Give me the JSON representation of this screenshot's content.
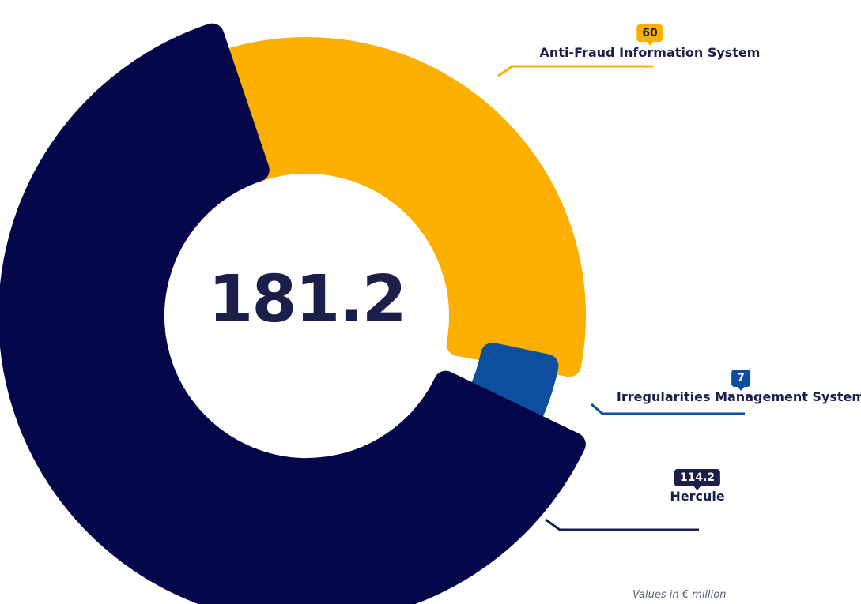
{
  "chart_data": {
    "type": "pie",
    "donut": true,
    "total_label": "181.2",
    "note": "Values in € million",
    "slices": [
      {
        "label": "Anti-Fraud Information System",
        "value": 60,
        "value_label": "60",
        "color": "#FBB000"
      },
      {
        "label": "Irregularities Management System",
        "value": 7,
        "value_label": "7",
        "color": "#0D4E9E"
      },
      {
        "label": "Hercule",
        "value": 114.2,
        "value_label": "114.2",
        "color": "#04084A"
      }
    ]
  }
}
